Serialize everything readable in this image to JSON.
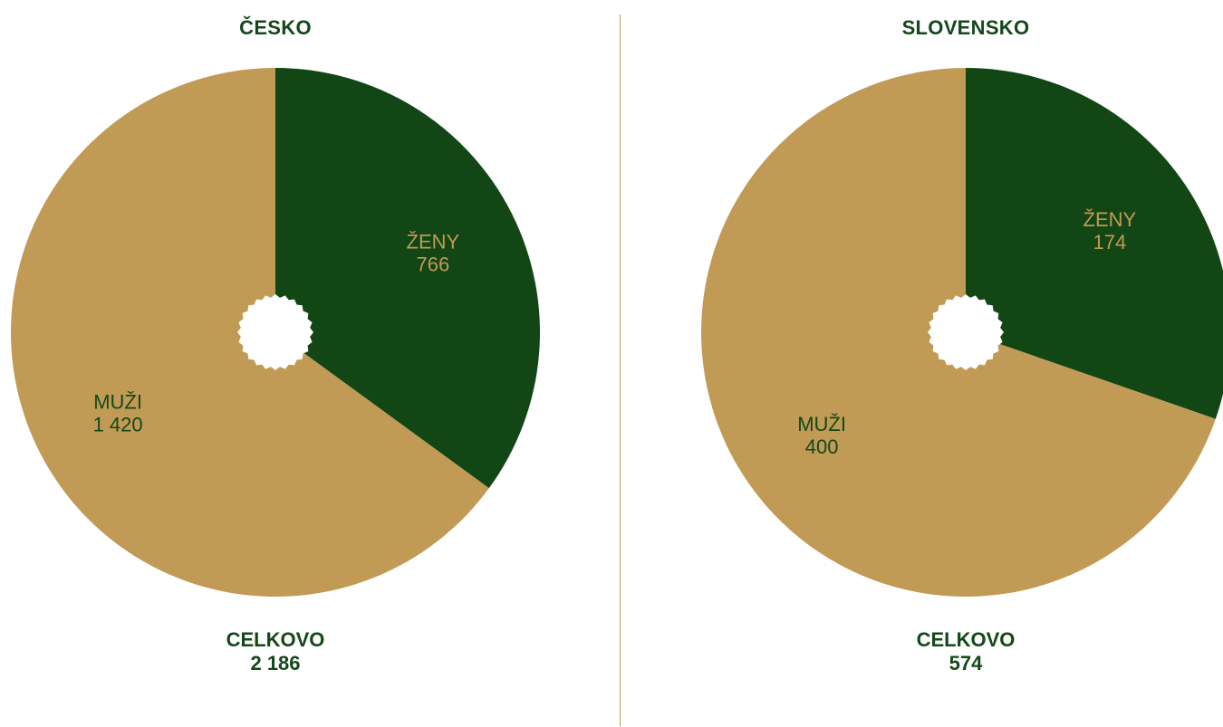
{
  "colors": {
    "women": "#124615",
    "men": "#c19a55",
    "women_label": "#c19a55",
    "men_label": "#14481a",
    "divider": "#c19a55",
    "hole": "#ffffff"
  },
  "chart_data": [
    {
      "type": "pie",
      "title": "ČESKO",
      "slices": [
        {
          "label": "ŽENY",
          "value": 766,
          "display": "766",
          "color": "#124615"
        },
        {
          "label": "MUŽI",
          "value": 1420,
          "display": "1 420",
          "color": "#c19a55"
        }
      ],
      "total_label": "CELKOVO",
      "total_value": "2 186"
    },
    {
      "type": "pie",
      "title": "SLOVENSKO",
      "slices": [
        {
          "label": "ŽENY",
          "value": 174,
          "display": "174",
          "color": "#124615"
        },
        {
          "label": "MUŽI",
          "value": 400,
          "display": "400",
          "color": "#c19a55"
        }
      ],
      "total_label": "CELKOVO",
      "total_value": "574"
    }
  ]
}
